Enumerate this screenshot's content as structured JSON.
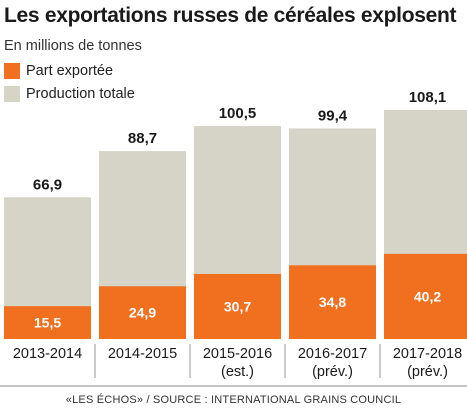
{
  "title": "Les exportations russes de céréales explosent",
  "subtitle": "En millions de tonnes",
  "legend": [
    {
      "label": "Part exportée",
      "color": "#f07020"
    },
    {
      "label": "Production totale",
      "color": "#d6d4c7"
    }
  ],
  "source": "«LES ÉCHOS» / SOURCE : INTERNATIONAL GRAINS COUNCIL",
  "chart_data": {
    "type": "bar",
    "stacked": "overlay",
    "categories": [
      {
        "line1": "2013-2014",
        "line2": ""
      },
      {
        "line1": "2014-2015",
        "line2": ""
      },
      {
        "line1": "2015-2016",
        "line2": "(est.)"
      },
      {
        "line1": "2016-2017",
        "line2": "(prév.)"
      },
      {
        "line1": "2017-2018",
        "line2": "(prév.)"
      }
    ],
    "series": [
      {
        "name": "Production totale",
        "values": [
          66.9,
          88.7,
          100.5,
          99.4,
          108.1
        ],
        "labels": [
          "66,9",
          "88,7",
          "100,5",
          "99,4",
          "108,1"
        ],
        "color": "#d6d4c7"
      },
      {
        "name": "Part exportée",
        "values": [
          15.5,
          24.9,
          30.7,
          34.8,
          40.2
        ],
        "labels": [
          "15,5",
          "24,9",
          "30,7",
          "34,8",
          "40,2"
        ],
        "color": "#f07020"
      }
    ],
    "ylim": [
      0,
      108.1
    ],
    "grid": false
  }
}
